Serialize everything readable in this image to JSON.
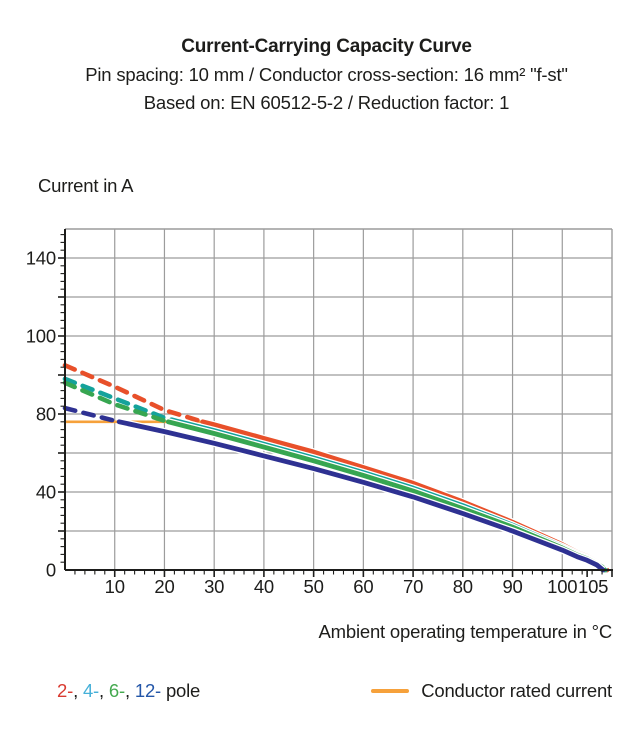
{
  "header": {
    "title": "Current-Carrying Capacity Curve",
    "line2": "Pin spacing: 10 mm / Conductor cross-section: 16 mm² \"f-st\"",
    "line3": "Based on: EN 60512-5-2 / Reduction factor: 1"
  },
  "legend": {
    "poles": [
      {
        "label": "2-",
        "color": "#d93a30"
      },
      {
        "label": "4-",
        "color": "#45b0d8"
      },
      {
        "label": "6-",
        "color": "#44a94f"
      },
      {
        "label": "12-",
        "color": "#2356a8"
      }
    ],
    "separator": ", ",
    "pole_suffix": " pole",
    "rated_label": "Conductor rated current",
    "rated_color": "#f6a13b"
  },
  "chart_data": {
    "type": "line",
    "title": "Current-Carrying Capacity Curve",
    "xlabel": "Ambient operating temperature in °C",
    "ylabel": "Current in A",
    "xlim": [
      0,
      110
    ],
    "x_ticks": [
      10,
      20,
      30,
      40,
      50,
      60,
      70,
      80,
      90,
      100,
      105
    ],
    "y_tick_values": [
      0,
      40,
      80,
      100,
      140
    ],
    "y_tick_labels": [
      "0",
      "40",
      "80",
      "100",
      "140"
    ],
    "grid": true,
    "legend_position": "bottom",
    "grid_color": "#9c9c9c",
    "axis_color": "#1d1d1b",
    "rated_current": {
      "label": "Conductor rated current",
      "value_A": 76,
      "color": "#f6a13b",
      "x_range_C": [
        0,
        27.7
      ]
    },
    "line_style_note": "curves are dashed above the conductor rated current line, solid below it",
    "series": [
      {
        "name": "2-pole",
        "color": "#e8502a",
        "points": [
          [
            0,
            92.5
          ],
          [
            10,
            87
          ],
          [
            20,
            81
          ],
          [
            30,
            74.5
          ],
          [
            40,
            67.5
          ],
          [
            50,
            60.5
          ],
          [
            60,
            52.5
          ],
          [
            70,
            44.5
          ],
          [
            80,
            35
          ],
          [
            90,
            24.5
          ],
          [
            100,
            13
          ],
          [
            103,
            9
          ],
          [
            105,
            7
          ],
          [
            107,
            4.2
          ],
          [
            108,
            2.6
          ],
          [
            109,
            0
          ]
        ]
      },
      {
        "name": "4-pole",
        "color": "#14a29b",
        "points": [
          [
            0,
            89
          ],
          [
            10,
            84
          ],
          [
            20,
            78
          ],
          [
            30,
            71.5
          ],
          [
            40,
            64.5
          ],
          [
            50,
            57.5
          ],
          [
            60,
            50
          ],
          [
            70,
            42
          ],
          [
            80,
            33
          ],
          [
            90,
            23
          ],
          [
            100,
            12
          ],
          [
            103,
            8.3
          ],
          [
            105,
            6.3
          ],
          [
            107,
            3.6
          ],
          [
            108,
            2
          ],
          [
            108.7,
            0
          ]
        ]
      },
      {
        "name": "6-pole",
        "color": "#37a651",
        "points": [
          [
            0,
            88
          ],
          [
            10,
            82.5
          ],
          [
            20,
            76.5
          ],
          [
            30,
            70
          ],
          [
            40,
            63
          ],
          [
            50,
            56
          ],
          [
            60,
            48.5
          ],
          [
            70,
            40.5
          ],
          [
            80,
            31.5
          ],
          [
            90,
            22
          ],
          [
            100,
            11.3
          ],
          [
            103,
            7.7
          ],
          [
            105,
            5.8
          ],
          [
            107,
            3.1
          ],
          [
            108,
            1.6
          ],
          [
            108.5,
            0
          ]
        ]
      },
      {
        "name": "12-pole",
        "color": "#2e3192",
        "points": [
          [
            0,
            81.5
          ],
          [
            10,
            76.5
          ],
          [
            20,
            71
          ],
          [
            30,
            65
          ],
          [
            40,
            58.5
          ],
          [
            50,
            52
          ],
          [
            60,
            45
          ],
          [
            70,
            37.5
          ],
          [
            80,
            29
          ],
          [
            90,
            20
          ],
          [
            100,
            10.2
          ],
          [
            103,
            6.8
          ],
          [
            105,
            5
          ],
          [
            107,
            2.5
          ],
          [
            108.2,
            0
          ]
        ]
      }
    ]
  }
}
